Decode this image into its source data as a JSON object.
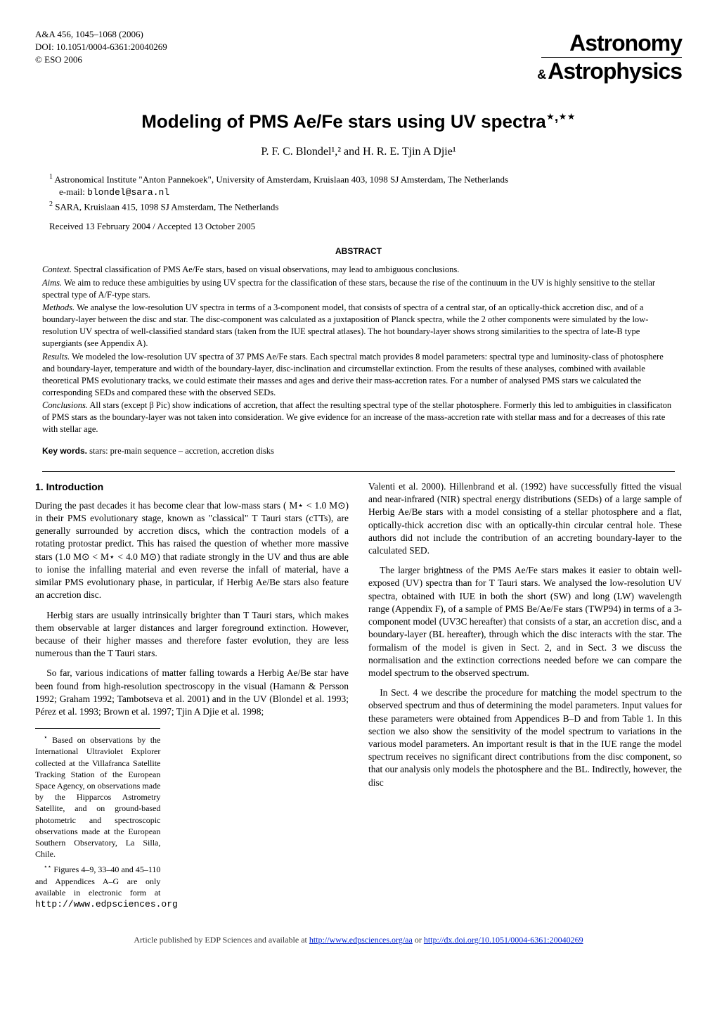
{
  "header": {
    "citation": "A&A 456, 1045–1068 (2006)",
    "doi": "DOI: 10.1051/0004-6361:20040269",
    "copyright": "© ESO 2006",
    "journal_top": "Astronomy",
    "journal_amp": "&",
    "journal_bottom": "Astrophysics"
  },
  "title": "Modeling of PMS Ae/Fe stars using UV spectra",
  "title_stars": "⋆,⋆⋆",
  "authors": "P. F. C. Blondel¹,² and H. R. E. Tjin A Djie¹",
  "affiliations": [
    {
      "num": "1",
      "text": "Astronomical Institute \"Anton Pannekoek\", University of Amsterdam, Kruislaan 403, 1098 SJ Amsterdam, The Netherlands",
      "email_label": "e-mail:",
      "email": "blondel@sara.nl"
    },
    {
      "num": "2",
      "text": "SARA, Kruislaan 415, 1098 SJ Amsterdam, The Netherlands",
      "email_label": "",
      "email": ""
    }
  ],
  "dates": "Received 13 February 2004 / Accepted 13 October 2005",
  "abstract_heading": "ABSTRACT",
  "abstract": {
    "context_label": "Context.",
    "context": "Spectral classification of PMS Ae/Fe stars, based on visual observations, may lead to ambiguous conclusions.",
    "aims_label": "Aims.",
    "aims": "We aim to reduce these ambiguities by using UV spectra for the classification of these stars, because the rise of the continuum in the UV is highly sensitive to the stellar spectral type of A/F-type stars.",
    "methods_label": "Methods.",
    "methods": "We analyse the low-resolution UV spectra in terms of a 3-component model, that consists of spectra of a central star, of an optically-thick accretion disc, and of a boundary-layer between the disc and star. The disc-component was calculated as a juxtaposition of Planck spectra, while the 2 other components were simulated by the low-resolution UV spectra of well-classified standard stars (taken from the IUE spectral atlases). The hot boundary-layer shows strong similarities to the spectra of late-B type supergiants (see Appendix A).",
    "results_label": "Results.",
    "results": "We modeled the low-resolution UV spectra of 37 PMS Ae/Fe stars. Each spectral match provides 8 model parameters: spectral type and luminosity-class of photosphere and boundary-layer, temperature and width of the boundary-layer, disc-inclination and circumstellar extinction. From the results of these analyses, combined with available theoretical PMS evolutionary tracks, we could estimate their masses and ages and derive their mass-accretion rates. For a number of analysed PMS stars we calculated the corresponding SEDs and compared these with the observed SEDs.",
    "conclusions_label": "Conclusions.",
    "conclusions": "All stars (except β Pic) show indications of accretion, that affect the resulting spectral type of the stellar photosphere. Formerly this led to ambiguities in classificaton of PMS stars as the boundary-layer was not taken into consideration. We give evidence for an increase of the mass-accretion rate with stellar mass and for a decreases of this rate with stellar age."
  },
  "keywords_label": "Key words.",
  "keywords": "stars: pre-main sequence – accretion, accretion disks",
  "section1": {
    "heading": "1. Introduction",
    "p1": "During the past decades it has become clear that low-mass stars ( M⋆ < 1.0 M⊙) in their PMS evolutionary stage, known as \"classical\" T Tauri stars (cTTs), are generally surrounded by accretion discs, which the contraction models of a rotating protostar predict. This has raised the question of whether more massive stars (1.0 M⊙ < M⋆ < 4.0 M⊙) that radiate strongly in the UV and thus are able to ionise the infalling material and even reverse the infall of material, have a similar PMS evolutionary phase, in particular, if Herbig Ae/Be stars also feature an accretion disc.",
    "p2": "Herbig stars are usually intrinsically brighter than T Tauri stars, which makes them observable at larger distances and larger foreground extinction. However, because of their higher masses and therefore faster evolution, they are less numerous than the T Tauri stars.",
    "p3": "So far, various indications of matter falling towards a Herbig Ae/Be star have been found from high-resolution spectroscopy in the visual (Hamann & Persson 1992; Graham 1992; Tambotseva et al. 2001) and in the UV (Blondel et al. 1993; Pérez et al. 1993; Brown et al. 1997; Tjin A Djie et al. 1998;",
    "p4": "Valenti et al. 2000). Hillenbrand et al. (1992) have successfully fitted the visual and near-infrared (NIR) spectral energy distributions (SEDs) of a large sample of Herbig Ae/Be stars with a model consisting of a stellar photosphere and a flat, optically-thick accretion disc with an optically-thin circular central hole. These authors did not include the contribution of an accreting boundary-layer to the calculated SED.",
    "p5": "The larger brightness of the PMS Ae/Fe stars makes it easier to obtain well-exposed (UV) spectra than for T Tauri stars. We analysed the low-resolution UV spectra, obtained with IUE in both the short (SW) and long (LW) wavelength range (Appendix F), of a sample of PMS Be/Ae/Fe stars (TWP94) in terms of a 3-component model (UV3C hereafter) that consists of a star, an accretion disc, and a boundary-layer (BL hereafter), through which the disc interacts with the star. The formalism of the model is given in Sect. 2, and in Sect. 3 we discuss the normalisation and the extinction corrections needed before we can compare the model spectrum to the observed spectrum.",
    "p6": "In Sect. 4 we describe the procedure for matching the model spectrum to the observed spectrum and thus of determining the model parameters. Input values for these parameters were obtained from Appendices B–D and from Table 1. In this section we also show the sensitivity of the model spectrum to variations in the various model parameters. An important result is that in the IUE range the model spectrum receives no significant direct contributions from the disc component, so that our analysis only models the photosphere and the BL. Indirectly, however, the disc"
  },
  "footnotes": {
    "f1_star": "⋆",
    "f1": "Based on observations by the International Ultraviolet Explorer collected at the Villafranca Satellite Tracking Station of the European Space Agency, on observations made by the Hipparcos Astrometry Satellite, and on ground-based photometric and spectroscopic observations made at the European Southern Observatory, La Silla, Chile.",
    "f2_star": "⋆⋆",
    "f2": "Figures 4–9, 33–40 and 45–110 and Appendices A–G are only available in electronic form at ",
    "f2_url": "http://www.edpsciences.org"
  },
  "footer": {
    "text1": "Article published by EDP Sciences and available at ",
    "url1": "http://www.edpsciences.org/aa",
    "text2": " or ",
    "url2": "http://dx.doi.org/10.1051/0004-6361:20040269"
  }
}
